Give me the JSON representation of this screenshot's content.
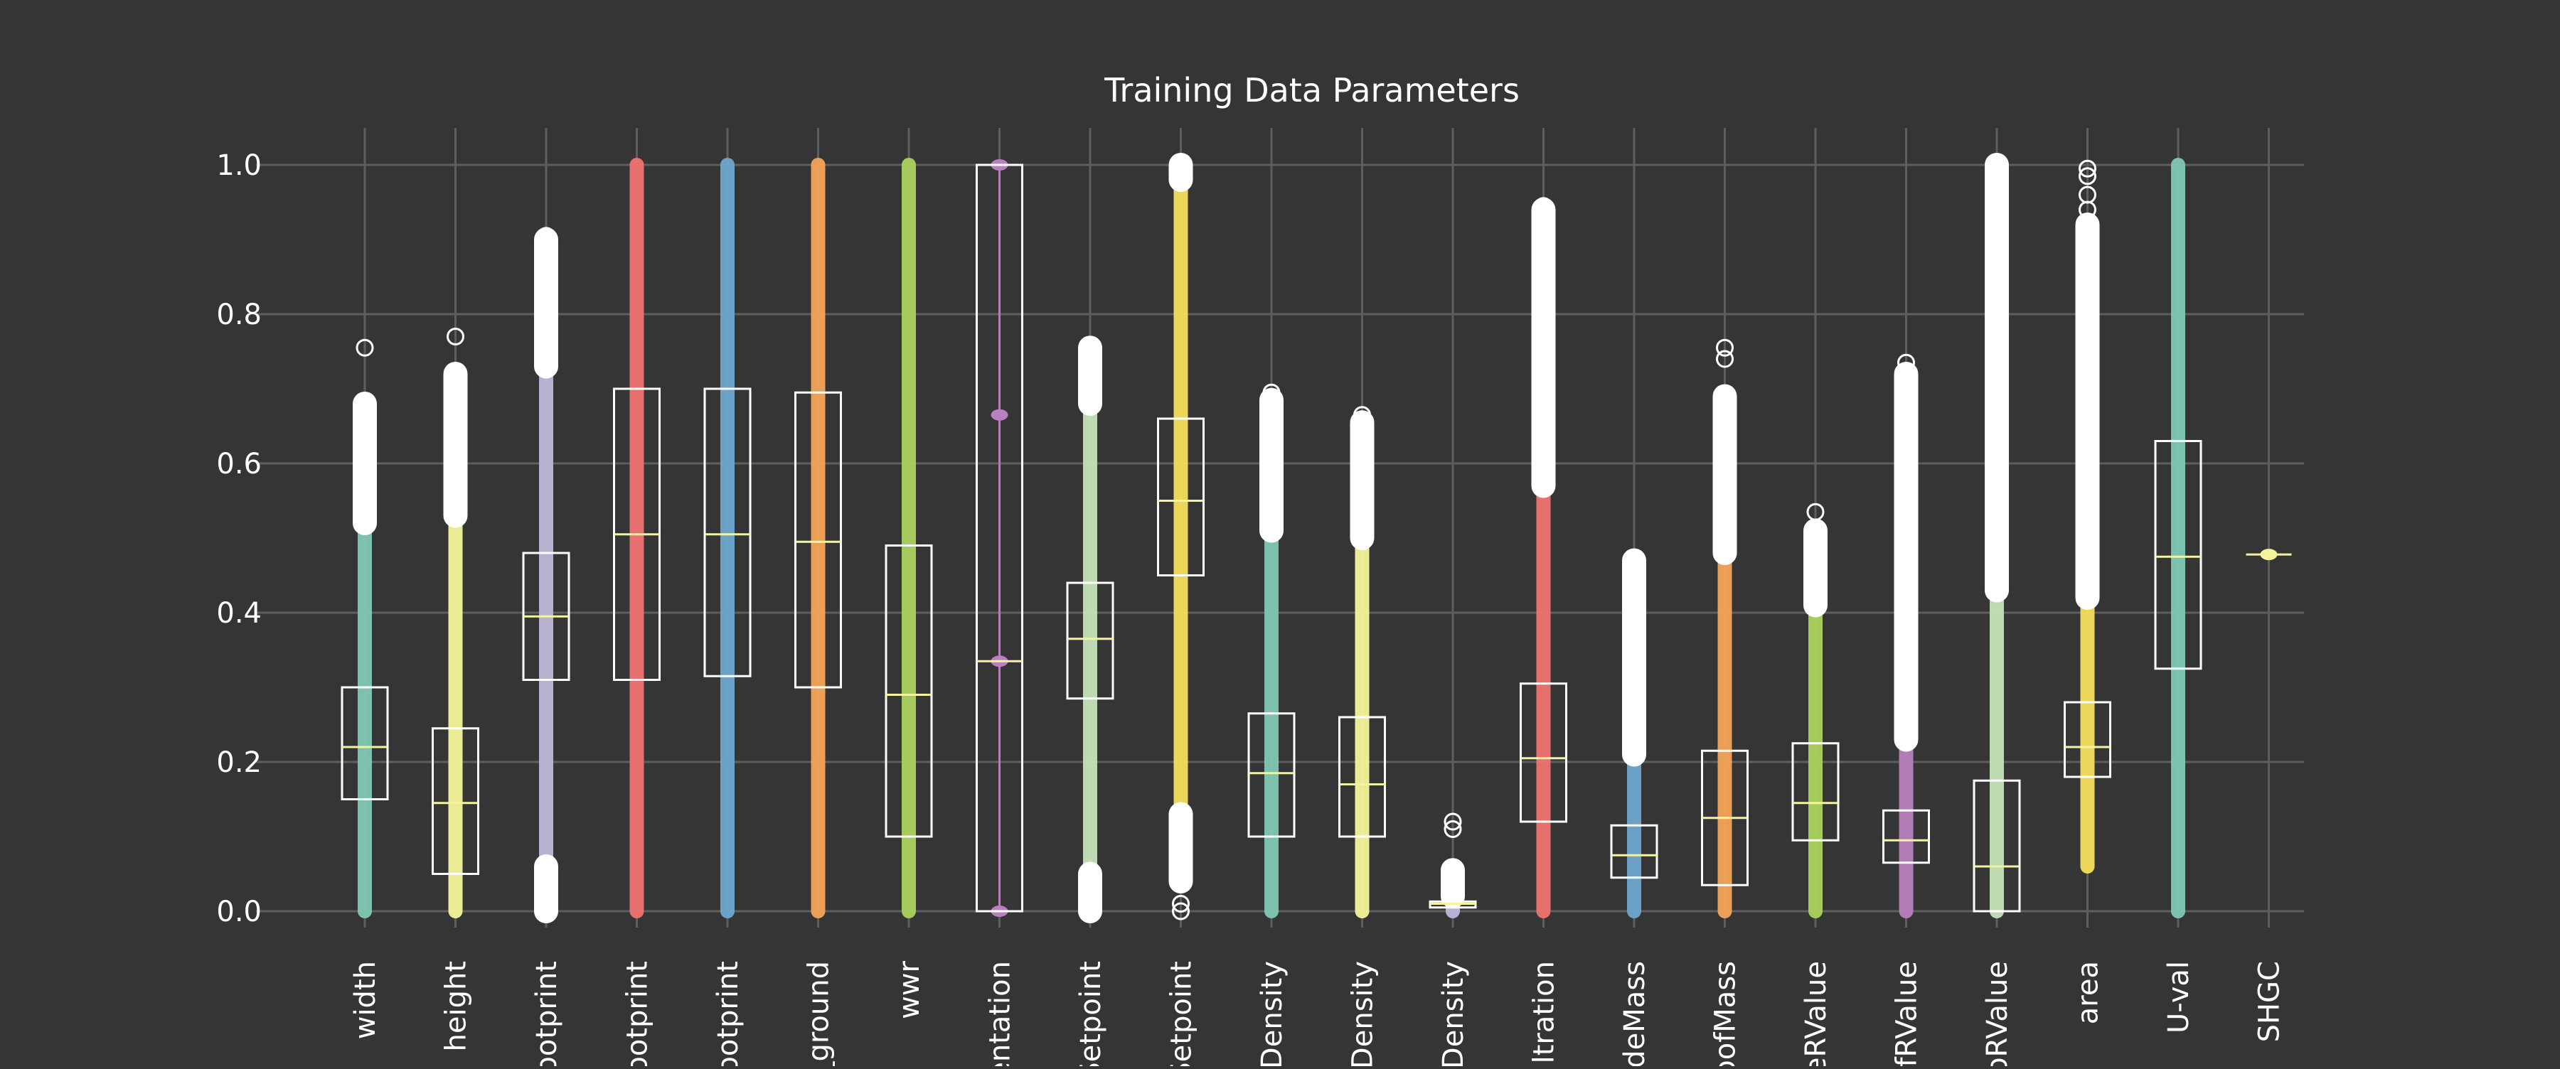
{
  "chart_data": {
    "type": "box",
    "title": "Training Data Parameters",
    "xlabel": "",
    "ylabel": "",
    "ylim": [
      0.0,
      1.0
    ],
    "yticks": [
      "0.0",
      "0.2",
      "0.4",
      "0.6",
      "0.8",
      "1.0"
    ],
    "grid": true,
    "legend": "none",
    "colors": {
      "background": "#353535",
      "grid": "#5e5e5e",
      "box": "#ffffff",
      "median": "#f3f3a0",
      "outlier": "#ffffff",
      "text": "#ffffff"
    },
    "series": [
      {
        "name": "width",
        "color": "#7fc9b4",
        "min": 0.0,
        "max": 0.52,
        "q1": 0.15,
        "median": 0.22,
        "q3": 0.3,
        "outliers": [
          0.53,
          0.6,
          0.68
        ],
        "dense_outliers": [
          0.52,
          0.68
        ],
        "far_outliers": [
          0.755
        ]
      },
      {
        "name": "height",
        "color": "#f5f59c",
        "min": 0.0,
        "max": 0.53,
        "q1": 0.05,
        "median": 0.145,
        "q3": 0.245,
        "outliers": [
          0.55,
          0.65,
          0.72
        ],
        "dense_outliers": [
          0.53,
          0.72
        ],
        "far_outliers": [
          0.77
        ]
      },
      {
        "name": "footprint",
        "color": "#bdb7da",
        "min": 0.06,
        "max": 0.73,
        "q1": 0.31,
        "median": 0.395,
        "q3": 0.48,
        "outliers": [
          0.0,
          0.03,
          0.75,
          0.85,
          0.9
        ],
        "dense_outliers": [
          0.73,
          0.9
        ],
        "low_dense_outliers": [
          0.0,
          0.06
        ],
        "far_outliers": [
          0.905
        ]
      },
      {
        "name": "footprint",
        "color": "#f07471",
        "min": 0.0,
        "max": 1.0,
        "q1": 0.31,
        "median": 0.505,
        "q3": 0.7,
        "outliers": []
      },
      {
        "name": "footprint",
        "color": "#6fa7cf",
        "min": 0.0,
        "max": 1.0,
        "q1": 0.315,
        "median": 0.505,
        "q3": 0.7,
        "outliers": []
      },
      {
        "name": "_ground",
        "color": "#f5a458",
        "min": 0.0,
        "max": 1.0,
        "q1": 0.3,
        "median": 0.495,
        "q3": 0.695,
        "outliers": []
      },
      {
        "name": "wwr",
        "color": "#aad25f",
        "min": 0.0,
        "max": 1.0,
        "q1": 0.1,
        "median": 0.29,
        "q3": 0.49,
        "outliers": []
      },
      {
        "name": "entation",
        "color": "#b980c0",
        "min": 0.0,
        "max": 1.0,
        "q1": 0.0,
        "median": 0.335,
        "q3": 1.0,
        "outliers": [],
        "points": [
          0.0,
          0.335,
          0.665,
          1.0
        ],
        "thin": true
      },
      {
        "name": "Setpoint",
        "color": "#c6e3b9",
        "min": 0.05,
        "max": 0.68,
        "q1": 0.285,
        "median": 0.365,
        "q3": 0.44,
        "outliers": [
          0.0,
          0.03,
          0.7,
          0.75
        ],
        "dense_outliers": [
          0.68,
          0.755
        ],
        "low_dense_outliers": [
          0.0,
          0.05
        ]
      },
      {
        "name": "Setpoint",
        "color": "#f5df5c",
        "min": 0.13,
        "max": 0.98,
        "q1": 0.45,
        "median": 0.55,
        "q3": 0.66,
        "outliers": [
          0.0,
          0.01,
          0.05,
          0.1,
          0.99,
          1.0
        ],
        "dense_outliers": [
          0.98,
          1.0
        ],
        "low_dense_outliers": [
          0.04,
          0.13
        ],
        "far_outliers": [
          0.0,
          0.01
        ]
      },
      {
        "name": "rDensity",
        "color": "#7fc9b4",
        "min": 0.0,
        "max": 0.51,
        "q1": 0.1,
        "median": 0.185,
        "q3": 0.265,
        "outliers": [
          0.55,
          0.65,
          0.69
        ],
        "dense_outliers": [
          0.51,
          0.685
        ],
        "far_outliers": [
          0.695
        ]
      },
      {
        "name": "rDensity",
        "color": "#f5f59c",
        "min": 0.0,
        "max": 0.5,
        "q1": 0.1,
        "median": 0.17,
        "q3": 0.26,
        "outliers": [
          0.55,
          0.62,
          0.66
        ],
        "dense_outliers": [
          0.5,
          0.655
        ],
        "far_outliers": [
          0.665
        ]
      },
      {
        "name": "eDensity",
        "color": "#bdb7da",
        "min": 0.0,
        "max": 0.02,
        "q1": 0.005,
        "median": 0.01,
        "q3": 0.013,
        "outliers": [
          0.03,
          0.05,
          0.11,
          0.12
        ],
        "dense_outliers": [
          0.02,
          0.055
        ],
        "far_outliers": [
          0.11,
          0.12
        ]
      },
      {
        "name": "filtration",
        "color": "#f07471",
        "min": 0.0,
        "max": 0.57,
        "q1": 0.12,
        "median": 0.205,
        "q3": 0.305,
        "outliers": [
          0.6,
          0.8,
          0.945
        ],
        "dense_outliers": [
          0.57,
          0.94
        ],
        "far_outliers": [
          0.945
        ]
      },
      {
        "name": "deMass",
        "color": "#6fa7cf",
        "min": 0.0,
        "max": 0.21,
        "q1": 0.045,
        "median": 0.075,
        "q3": 0.115,
        "outliers": [
          0.25,
          0.35,
          0.47
        ],
        "dense_outliers": [
          0.21,
          0.47
        ]
      },
      {
        "name": "oofMass",
        "color": "#f5a458",
        "min": 0.0,
        "max": 0.48,
        "q1": 0.035,
        "median": 0.125,
        "q3": 0.215,
        "outliers": [
          0.5,
          0.6,
          0.69,
          0.74,
          0.755
        ],
        "dense_outliers": [
          0.48,
          0.69
        ],
        "far_outliers": [
          0.74,
          0.755
        ]
      },
      {
        "name": "eRValue",
        "color": "#aad25f",
        "min": 0.0,
        "max": 0.41,
        "q1": 0.095,
        "median": 0.145,
        "q3": 0.225,
        "outliers": [
          0.45,
          0.5,
          0.53
        ],
        "dense_outliers": [
          0.41,
          0.51
        ],
        "far_outliers": [
          0.535
        ]
      },
      {
        "name": "fRValue",
        "color": "#b980c0",
        "min": 0.0,
        "max": 0.23,
        "q1": 0.065,
        "median": 0.095,
        "q3": 0.135,
        "outliers": [
          0.3,
          0.5,
          0.7,
          0.735
        ],
        "dense_outliers": [
          0.23,
          0.72
        ],
        "far_outliers": [
          0.735
        ]
      },
      {
        "name": "oRValue",
        "color": "#c6e3b9",
        "min": 0.0,
        "max": 0.43,
        "q1": 0.0,
        "median": 0.06,
        "q3": 0.175,
        "outliers": [
          0.5,
          0.8,
          1.0
        ],
        "dense_outliers": [
          0.43,
          1.0
        ]
      },
      {
        "name": "area",
        "color": "#f5df5c",
        "min": 0.06,
        "max": 0.42,
        "q1": 0.18,
        "median": 0.22,
        "q3": 0.28,
        "outliers": [
          0.5,
          0.7,
          0.9,
          0.99
        ],
        "dense_outliers": [
          0.42,
          0.92
        ],
        "far_outliers": [
          0.94,
          0.96,
          0.985,
          0.995
        ]
      },
      {
        "name": "U-val",
        "color": "#7fc9b4",
        "min": 0.0,
        "max": 1.0,
        "q1": 0.325,
        "median": 0.475,
        "q3": 0.63,
        "outliers": []
      },
      {
        "name": "SHGC",
        "color": "#f5f59c",
        "min": 0.475,
        "max": 0.48,
        "q1": 0.478,
        "median": 0.478,
        "q3": 0.478,
        "outliers": [],
        "points": [
          0.478
        ],
        "flat": true
      }
    ]
  }
}
